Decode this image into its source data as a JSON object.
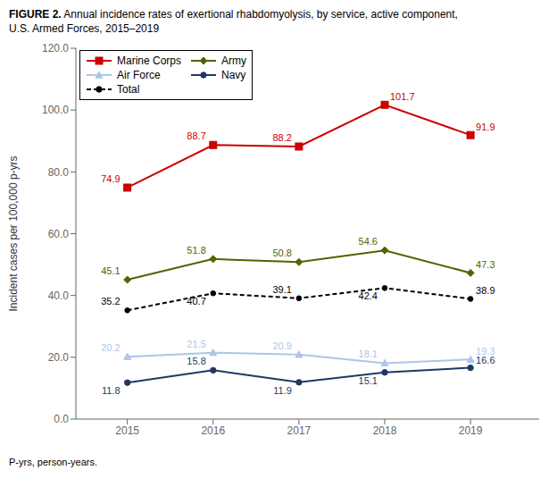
{
  "chart_data": {
    "type": "line",
    "title": "FIGURE 2.",
    "subtitle": "Annual incidence rates of exertional rhabdomyolysis, by service, active component,\nU.S. Armed Forces, 2015–2019",
    "ylabel": "Incident cases per 100,000 p-yrs",
    "annotations": [
      "P-yrs, person-years."
    ],
    "x": [
      2015,
      2016,
      2017,
      2018,
      2019
    ],
    "xlim": [
      2014.4,
      2019.8
    ],
    "xticks": [
      2015,
      2016,
      2017,
      2018,
      2019
    ],
    "ylim": [
      0,
      120
    ],
    "yticks": [
      {
        "value": 0,
        "label": "0.0"
      },
      {
        "value": 20,
        "label": "20.0"
      },
      {
        "value": 40,
        "label": "40.0"
      },
      {
        "value": 60,
        "label": "60.0"
      },
      {
        "value": 80,
        "label": "80.0"
      },
      {
        "value": 100,
        "label": "100.0"
      },
      {
        "value": 120,
        "label": "120.0"
      }
    ],
    "grid": false,
    "legend": "upper left",
    "data_labels": true,
    "series": [
      {
        "name": "Marine Corps",
        "color": "#cc0000",
        "marker": "square",
        "line_style": "solid",
        "values": [
          74.9,
          88.7,
          88.2,
          101.7,
          91.9
        ]
      },
      {
        "name": "Army",
        "color": "#4d6600",
        "marker": "diamond",
        "line_style": "solid",
        "values": [
          45.1,
          51.8,
          50.8,
          54.6,
          47.3
        ]
      },
      {
        "name": "Air Force",
        "color": "#adc6e8",
        "marker": "triangle",
        "line_style": "solid",
        "values": [
          20.2,
          21.5,
          20.9,
          18.1,
          19.3
        ]
      },
      {
        "name": "Navy",
        "color": "#1f3864",
        "marker": "circle",
        "line_style": "solid",
        "values": [
          11.8,
          15.8,
          11.9,
          15.1,
          16.6
        ]
      },
      {
        "name": "Total",
        "color": "#000000",
        "marker": "circle",
        "line_style": "dashed",
        "values": [
          35.2,
          40.7,
          39.1,
          42.4,
          38.9
        ]
      }
    ]
  }
}
